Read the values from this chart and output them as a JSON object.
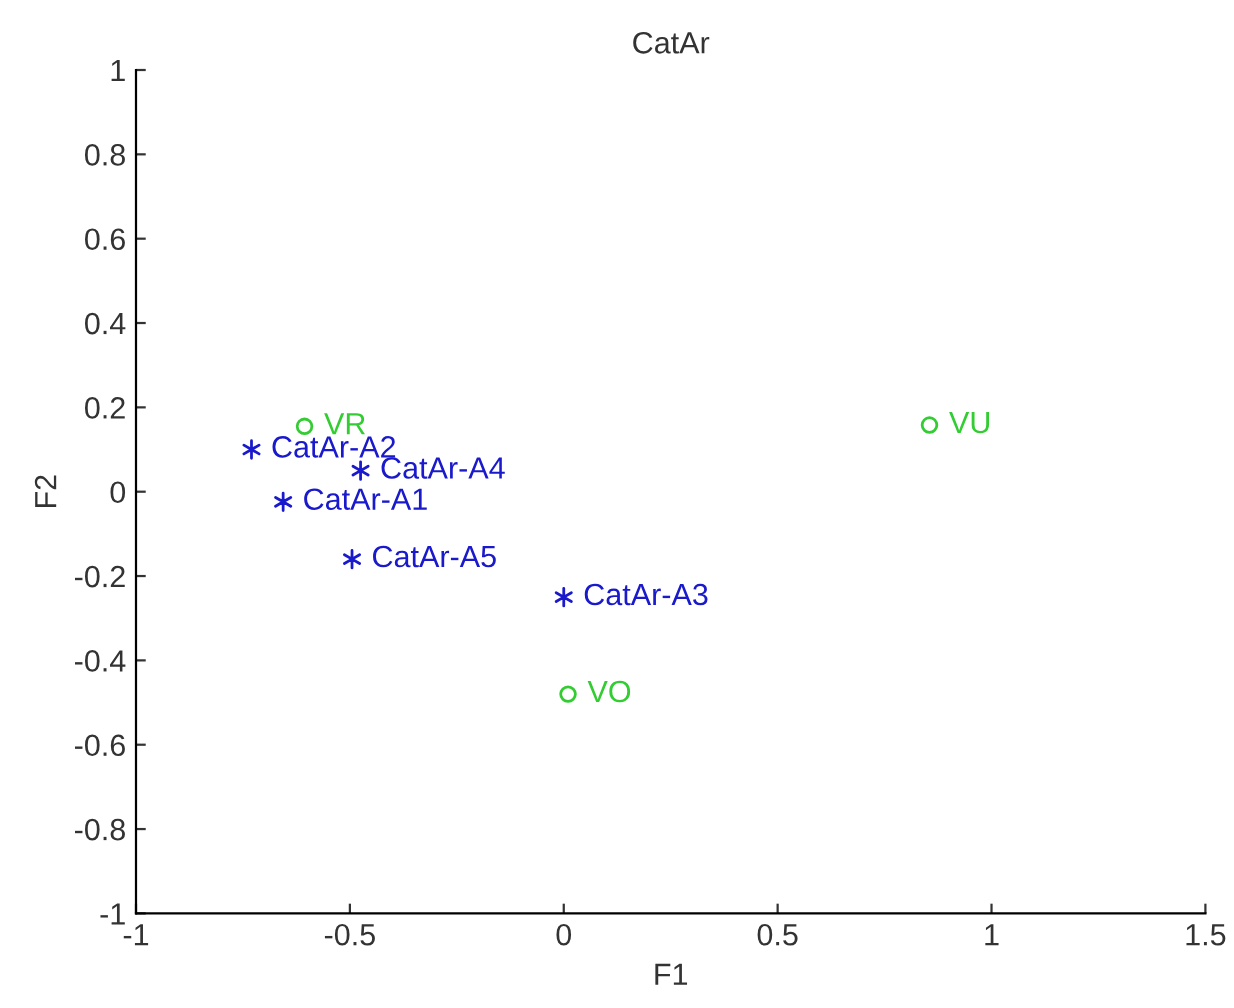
{
  "chart_data": {
    "type": "scatter",
    "title": "CatAr",
    "xlabel": "F1",
    "ylabel": "F2",
    "xlim": [
      -1,
      1.5
    ],
    "xticks": [
      -1,
      -0.5,
      0,
      0.5,
      1,
      1.5
    ],
    "ylim": [
      -1,
      1
    ],
    "yticks": [
      -1,
      -0.8,
      -0.6,
      -0.4,
      -0.2,
      0,
      0.2,
      0.4,
      0.6,
      0.8,
      1
    ],
    "grid": false,
    "legend": false,
    "series": [
      {
        "color": "#1a1acc",
        "marker": "cross",
        "x": [
          -0.656,
          -0.73,
          0.0,
          -0.475,
          -0.495
        ],
        "values": [
          -0.024,
          0.1,
          -0.25,
          0.05,
          -0.16
        ],
        "value_labels": [
          "CatAr-A1",
          "CatAr-A2",
          "CatAr-A3",
          "CatAr-A4",
          "CatAr-A5"
        ]
      },
      {
        "color": "#33cc33",
        "marker": "circle",
        "x": [
          -0.606,
          0.855,
          0.01
        ],
        "values": [
          0.155,
          0.158,
          -0.48
        ],
        "value_labels": [
          "VR",
          "VU",
          "VO"
        ]
      }
    ]
  }
}
